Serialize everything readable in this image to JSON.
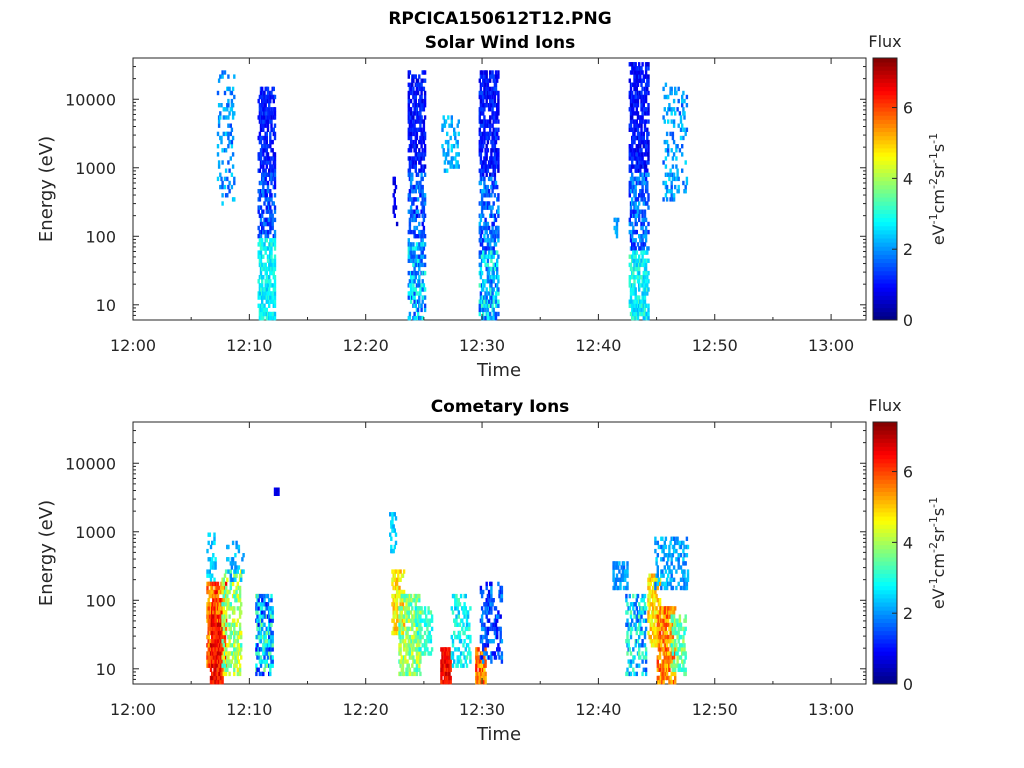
{
  "figure": {
    "title": "RPCICA150612T12.PNG"
  },
  "chart_data": [
    {
      "type": "heatmap",
      "title": "Solar Wind Ions",
      "xlabel": "Time",
      "ylabel": "Energy (eV)",
      "x_ticks": [
        "12:00",
        "12:10",
        "12:20",
        "12:30",
        "12:40",
        "12:50",
        "13:00"
      ],
      "x_range_min": [
        0,
        63
      ],
      "y_scale": "log",
      "y_ticks": [
        "10",
        "100",
        "1000",
        "10000"
      ],
      "y_range_eV": [
        6,
        40000
      ],
      "colorbar": {
        "title": "Flux",
        "label": "eV-1cm-2sr-1s-1",
        "ticks": [
          "0",
          "2",
          "4",
          "6"
        ],
        "range": [
          0,
          7.4
        ],
        "colormap": "jet"
      },
      "clusters": [
        {
          "t": [
            7.2,
            8.6
          ],
          "e": [
            300,
            25000
          ],
          "flux": [
            1.4,
            2.6
          ],
          "density": 0.22
        },
        {
          "t": [
            10.7,
            12.1
          ],
          "e": [
            900,
            15000
          ],
          "flux": [
            0.7,
            1.5
          ],
          "density": 0.55
        },
        {
          "t": [
            10.7,
            12.1
          ],
          "e": [
            100,
            900
          ],
          "flux": [
            0.9,
            2.0
          ],
          "density": 0.45
        },
        {
          "t": [
            10.7,
            12.1
          ],
          "e": [
            6,
            100
          ],
          "flux": [
            2.3,
            3.2
          ],
          "density": 0.6
        },
        {
          "t": [
            22.3,
            22.6
          ],
          "e": [
            150,
            700
          ],
          "flux": [
            0.5,
            1.0
          ],
          "density": 0.3
        },
        {
          "t": [
            23.6,
            25.0
          ],
          "e": [
            800,
            25000
          ],
          "flux": [
            0.6,
            1.4
          ],
          "density": 0.55
        },
        {
          "t": [
            23.6,
            25.0
          ],
          "e": [
            80,
            800
          ],
          "flux": [
            0.8,
            2.2
          ],
          "density": 0.45
        },
        {
          "t": [
            23.6,
            25.0
          ],
          "e": [
            6,
            80
          ],
          "flux": [
            1.2,
            3.2
          ],
          "density": 0.5
        },
        {
          "t": [
            26.5,
            28.0
          ],
          "e": [
            800,
            6000
          ],
          "flux": [
            1.8,
            2.6
          ],
          "density": 0.25
        },
        {
          "t": [
            29.7,
            31.3
          ],
          "e": [
            700,
            25000
          ],
          "flux": [
            0.6,
            1.5
          ],
          "density": 0.55
        },
        {
          "t": [
            29.7,
            31.3
          ],
          "e": [
            60,
            700
          ],
          "flux": [
            1.0,
            2.4
          ],
          "density": 0.45
        },
        {
          "t": [
            29.7,
            31.3
          ],
          "e": [
            6,
            60
          ],
          "flux": [
            1.3,
            3.3
          ],
          "density": 0.55
        },
        {
          "t": [
            41.3,
            41.6
          ],
          "e": [
            100,
            200
          ],
          "flux": [
            1.8,
            2.4
          ],
          "density": 0.4
        },
        {
          "t": [
            42.6,
            44.2
          ],
          "e": [
            800,
            35000
          ],
          "flux": [
            0.6,
            1.4
          ],
          "density": 0.55
        },
        {
          "t": [
            42.6,
            44.2
          ],
          "e": [
            60,
            800
          ],
          "flux": [
            1.0,
            2.3
          ],
          "density": 0.45
        },
        {
          "t": [
            42.6,
            44.2
          ],
          "e": [
            6,
            60
          ],
          "flux": [
            2.2,
            3.4
          ],
          "density": 0.55
        },
        {
          "t": [
            45.5,
            47.5
          ],
          "e": [
            300,
            18000
          ],
          "flux": [
            1.4,
            2.6
          ],
          "density": 0.22
        }
      ]
    },
    {
      "type": "heatmap",
      "title": "Cometary Ions",
      "xlabel": "Time",
      "ylabel": "Energy (eV)",
      "x_ticks": [
        "12:00",
        "12:10",
        "12:20",
        "12:30",
        "12:40",
        "12:50",
        "13:00"
      ],
      "x_range_min": [
        0,
        63
      ],
      "y_scale": "log",
      "y_ticks": [
        "10",
        "100",
        "1000",
        "10000"
      ],
      "y_range_eV": [
        6,
        40000
      ],
      "colorbar": {
        "title": "Flux",
        "label": "eV-1cm-2sr-1s-1",
        "ticks": [
          "0",
          "2",
          "4",
          "6"
        ],
        "range": [
          0,
          7.4
        ],
        "colormap": "jet"
      },
      "clusters": [
        {
          "t": [
            6.3,
            7.0
          ],
          "e": [
            200,
            1200
          ],
          "flux": [
            2.0,
            2.8
          ],
          "density": 0.3
        },
        {
          "t": [
            6.3,
            7.9
          ],
          "e": [
            10,
            200
          ],
          "flux": [
            5.0,
            6.6
          ],
          "density": 0.75
        },
        {
          "t": [
            6.6,
            7.6
          ],
          "e": [
            6,
            60
          ],
          "flux": [
            5.8,
            7.0
          ],
          "density": 0.7
        },
        {
          "t": [
            7.6,
            9.2
          ],
          "e": [
            8,
            300
          ],
          "flux": [
            3.0,
            4.8
          ],
          "density": 0.45
        },
        {
          "t": [
            8.0,
            9.5
          ],
          "e": [
            200,
            700
          ],
          "flux": [
            1.8,
            2.6
          ],
          "density": 0.25
        },
        {
          "t": [
            10.5,
            11.9
          ],
          "e": [
            8,
            120
          ],
          "flux": [
            0.8,
            3.8
          ],
          "density": 0.5
        },
        {
          "t": [
            12.1,
            12.4
          ],
          "e": [
            3500,
            4500
          ],
          "flux": [
            0.6,
            0.9
          ],
          "density": 0.9
        },
        {
          "t": [
            22.0,
            22.5
          ],
          "e": [
            500,
            2000
          ],
          "flux": [
            2.0,
            2.8
          ],
          "density": 0.3
        },
        {
          "t": [
            22.2,
            23.2
          ],
          "e": [
            30,
            300
          ],
          "flux": [
            4.2,
            5.4
          ],
          "density": 0.6
        },
        {
          "t": [
            22.8,
            24.6
          ],
          "e": [
            8,
            120
          ],
          "flux": [
            3.0,
            4.6
          ],
          "density": 0.5
        },
        {
          "t": [
            24.2,
            25.6
          ],
          "e": [
            15,
            80
          ],
          "flux": [
            2.6,
            3.6
          ],
          "density": 0.35
        },
        {
          "t": [
            26.4,
            27.2
          ],
          "e": [
            6,
            20
          ],
          "flux": [
            6.0,
            7.0
          ],
          "density": 0.8
        },
        {
          "t": [
            27.3,
            28.9
          ],
          "e": [
            10,
            120
          ],
          "flux": [
            2.2,
            3.4
          ],
          "density": 0.35
        },
        {
          "t": [
            29.4,
            30.2
          ],
          "e": [
            6,
            20
          ],
          "flux": [
            4.8,
            6.4
          ],
          "density": 0.75
        },
        {
          "t": [
            29.8,
            31.6
          ],
          "e": [
            12,
            200
          ],
          "flux": [
            0.8,
            2.2
          ],
          "density": 0.35
        },
        {
          "t": [
            41.2,
            42.4
          ],
          "e": [
            150,
            350
          ],
          "flux": [
            1.6,
            2.4
          ],
          "density": 0.5
        },
        {
          "t": [
            42.3,
            44.0
          ],
          "e": [
            8,
            120
          ],
          "flux": [
            1.4,
            3.6
          ],
          "density": 0.4
        },
        {
          "t": [
            44.2,
            45.2
          ],
          "e": [
            20,
            250
          ],
          "flux": [
            4.2,
            5.4
          ],
          "density": 0.55
        },
        {
          "t": [
            45.0,
            46.5
          ],
          "e": [
            6,
            80
          ],
          "flux": [
            4.8,
            6.2
          ],
          "density": 0.65
        },
        {
          "t": [
            44.8,
            47.6
          ],
          "e": [
            150,
            800
          ],
          "flux": [
            1.6,
            2.6
          ],
          "density": 0.3
        },
        {
          "t": [
            46.2,
            47.4
          ],
          "e": [
            8,
            60
          ],
          "flux": [
            2.8,
            4.2
          ],
          "density": 0.45
        }
      ]
    }
  ]
}
